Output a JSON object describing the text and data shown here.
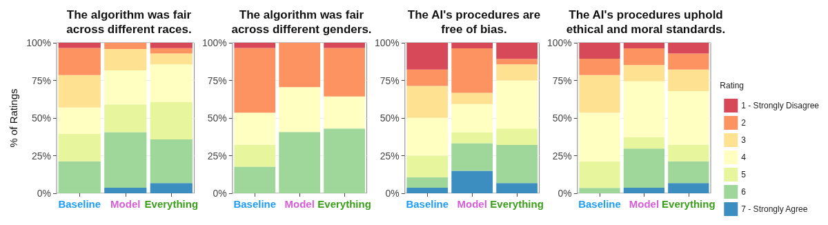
{
  "chart_data": [
    {
      "type": "bar",
      "stacked": true,
      "title": "The algorithm was fair\nacross different races.",
      "ylabel": "% of Ratings",
      "categories": [
        "Baseline",
        "Model",
        "Everything"
      ],
      "ylim": [
        0,
        100
      ],
      "yticks": [
        {
          "value": 0,
          "label": "0%"
        },
        {
          "value": 25,
          "label": "25%"
        },
        {
          "value": 50,
          "label": "50%"
        },
        {
          "value": 75,
          "label": "75%"
        },
        {
          "value": 100,
          "label": "100%"
        }
      ],
      "grid": "y",
      "legend": false,
      "series": [
        {
          "color": "#3288bd",
          "values": [
            0,
            3.7,
            6.8
          ]
        },
        {
          "color": "#99d594",
          "values": [
            21.2,
            36.9,
            29
          ]
        },
        {
          "color": "#e6f598",
          "values": [
            18.2,
            18.5,
            24.8
          ]
        },
        {
          "color": "#ffffbf",
          "values": [
            17.6,
            22.6,
            25.1
          ]
        },
        {
          "color": "#fee08b",
          "values": [
            21.6,
            14.2,
            7.2
          ]
        },
        {
          "color": "#fc8d59",
          "values": [
            18,
            4.1,
            3.5
          ]
        },
        {
          "color": "#d53e4f",
          "values": [
            3.4,
            0,
            3.6
          ]
        }
      ]
    },
    {
      "type": "bar",
      "stacked": true,
      "title": "The algorithm was fair\nacross different genders.",
      "categories": [
        "Baseline",
        "Model",
        "Everything"
      ],
      "ylim": [
        0,
        100
      ],
      "yticks": [
        {
          "value": 0,
          "label": "0%"
        },
        {
          "value": 25,
          "label": "25%"
        },
        {
          "value": 50,
          "label": "50%"
        },
        {
          "value": 75,
          "label": "75%"
        },
        {
          "value": 100,
          "label": "100%"
        }
      ],
      "grid": "y",
      "legend": false,
      "series": [
        {
          "color": "#3288bd",
          "values": [
            0,
            0,
            0
          ]
        },
        {
          "color": "#99d594",
          "values": [
            17.7,
            40.7,
            43
          ]
        },
        {
          "color": "#e6f598",
          "values": [
            14.6,
            0,
            0
          ]
        },
        {
          "color": "#ffffbf",
          "values": [
            21.2,
            29.8,
            21.3
          ]
        },
        {
          "color": "#fee08b",
          "values": [
            0,
            0,
            0
          ]
        },
        {
          "color": "#fc8d59",
          "values": [
            43.1,
            29.5,
            32.3
          ]
        },
        {
          "color": "#d53e4f",
          "values": [
            3.4,
            0,
            3.4
          ]
        }
      ]
    },
    {
      "type": "bar",
      "stacked": true,
      "title": "The AI's procedures are\nfree of bias.",
      "categories": [
        "Baseline",
        "Model",
        "Everything"
      ],
      "ylim": [
        0,
        100
      ],
      "yticks": [
        {
          "value": 0,
          "label": "0%"
        },
        {
          "value": 25,
          "label": "25%"
        },
        {
          "value": 50,
          "label": "50%"
        },
        {
          "value": 75,
          "label": "75%"
        },
        {
          "value": 100,
          "label": "100%"
        }
      ],
      "grid": "y",
      "legend": false,
      "series": [
        {
          "color": "#3288bd",
          "values": [
            3.7,
            14.9,
            6.8
          ]
        },
        {
          "color": "#99d594",
          "values": [
            7,
            18.4,
            25.3
          ]
        },
        {
          "color": "#e6f598",
          "values": [
            14.3,
            7.3,
            10.9
          ]
        },
        {
          "color": "#ffffbf",
          "values": [
            25.1,
            18.7,
            32
          ]
        },
        {
          "color": "#fee08b",
          "values": [
            21.2,
            7.4,
            10.7
          ]
        },
        {
          "color": "#fc8d59",
          "values": [
            10.9,
            29.6,
            3.6
          ]
        },
        {
          "color": "#d53e4f",
          "values": [
            17.8,
            3.7,
            10.7
          ]
        }
      ]
    },
    {
      "type": "bar",
      "stacked": true,
      "title": "The AI's procedures uphold\nethical and moral standards.",
      "legend_title": "Rating",
      "categories": [
        "Baseline",
        "Model",
        "Everything"
      ],
      "ylim": [
        0,
        100
      ],
      "yticks": [
        {
          "value": 0,
          "label": "0%"
        },
        {
          "value": 25,
          "label": "25%"
        },
        {
          "value": 50,
          "label": "50%"
        },
        {
          "value": 75,
          "label": "75%"
        },
        {
          "value": 100,
          "label": "100%"
        }
      ],
      "grid": "y",
      "legend": "right",
      "series": [
        {
          "name": "7 - Strongly Agree",
          "color": "#3288bd",
          "values": [
            0,
            3.7,
            6.8
          ]
        },
        {
          "name": "6",
          "color": "#99d594",
          "values": [
            3.6,
            26,
            14.4
          ]
        },
        {
          "name": "5",
          "color": "#e6f598",
          "values": [
            17.6,
            7.5,
            11.1
          ]
        },
        {
          "name": "4",
          "color": "#ffffbf",
          "values": [
            32.3,
            37.2,
            35.6
          ]
        },
        {
          "name": "3",
          "color": "#fee08b",
          "values": [
            25.1,
            10.8,
            14.3
          ]
        },
        {
          "name": "2",
          "color": "#fc8d59",
          "values": [
            10.9,
            11.1,
            10.7
          ]
        },
        {
          "name": "1 - Strongly Disagree",
          "color": "#d53e4f",
          "values": [
            10.5,
            3.7,
            7.1
          ]
        }
      ]
    }
  ]
}
